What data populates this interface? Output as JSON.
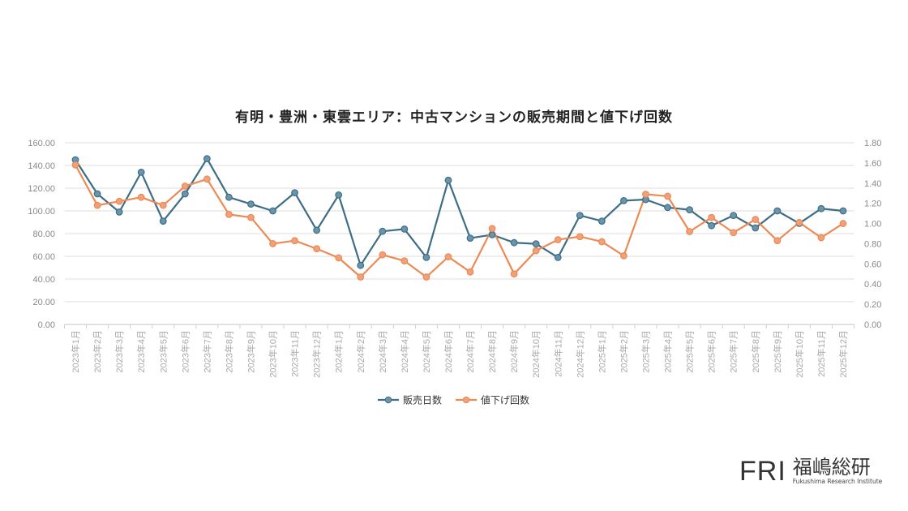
{
  "chart_data": {
    "type": "line",
    "title": "有明・豊洲・東雲エリア：中古マンションの販売期間と値下げ回数",
    "categories": [
      "2023年1月",
      "2023年2月",
      "2023年3月",
      "2023年4月",
      "2023年5月",
      "2023年6月",
      "2023年7月",
      "2023年8月",
      "2023年9月",
      "2023年10月",
      "2023年11月",
      "2023年12月",
      "2024年1月",
      "2024年2月",
      "2024年3月",
      "2024年4月",
      "2024年5月",
      "2024年6月",
      "2024年7月",
      "2024年8月",
      "2024年9月",
      "2024年10月",
      "2024年11月",
      "2024年12月",
      "2025年1月",
      "2025年2月",
      "2025年3月",
      "2025年4月",
      "2025年5月",
      "2025年6月",
      "2025年7月",
      "2025年8月",
      "2025年9月",
      "2025年10月",
      "2025年11月",
      "2025年12月"
    ],
    "y_left": {
      "range": [
        0,
        160
      ],
      "ticks": [
        "0.00",
        "20.00",
        "40.00",
        "60.00",
        "80.00",
        "100.00",
        "120.00",
        "140.00",
        "160.00"
      ]
    },
    "y_right": {
      "range": [
        0,
        1.8
      ],
      "ticks": [
        "0.00",
        "0.20",
        "0.40",
        "0.60",
        "0.80",
        "1.00",
        "1.20",
        "1.40",
        "1.60",
        "1.80"
      ]
    },
    "grid": true,
    "legend_position": "bottom",
    "series": [
      {
        "name": "販売日数",
        "axis": "left",
        "color": "#3d6e85",
        "values": [
          145,
          115,
          99,
          134,
          91,
          115,
          146,
          112,
          106,
          100,
          116,
          83,
          114,
          52,
          82,
          84,
          59,
          127,
          76,
          79,
          72,
          71,
          59,
          96,
          91,
          109,
          110,
          103,
          101,
          87,
          96,
          85,
          100,
          89,
          102,
          100
        ]
      },
      {
        "name": "値下げ回数",
        "axis": "right",
        "color": "#ec8a55",
        "values": [
          1.58,
          1.18,
          1.22,
          1.26,
          1.18,
          1.37,
          1.44,
          1.09,
          1.06,
          0.8,
          0.83,
          0.75,
          0.66,
          0.47,
          0.69,
          0.63,
          0.47,
          0.67,
          0.52,
          0.95,
          0.5,
          0.73,
          0.84,
          0.87,
          0.82,
          0.68,
          1.29,
          1.27,
          0.92,
          1.06,
          0.91,
          1.04,
          0.83,
          1.01,
          0.86,
          1.0
        ]
      }
    ]
  },
  "logo": {
    "mark": "FRI",
    "name_jp": "福嶋総研",
    "name_en": "Fukushima Research Institute"
  }
}
